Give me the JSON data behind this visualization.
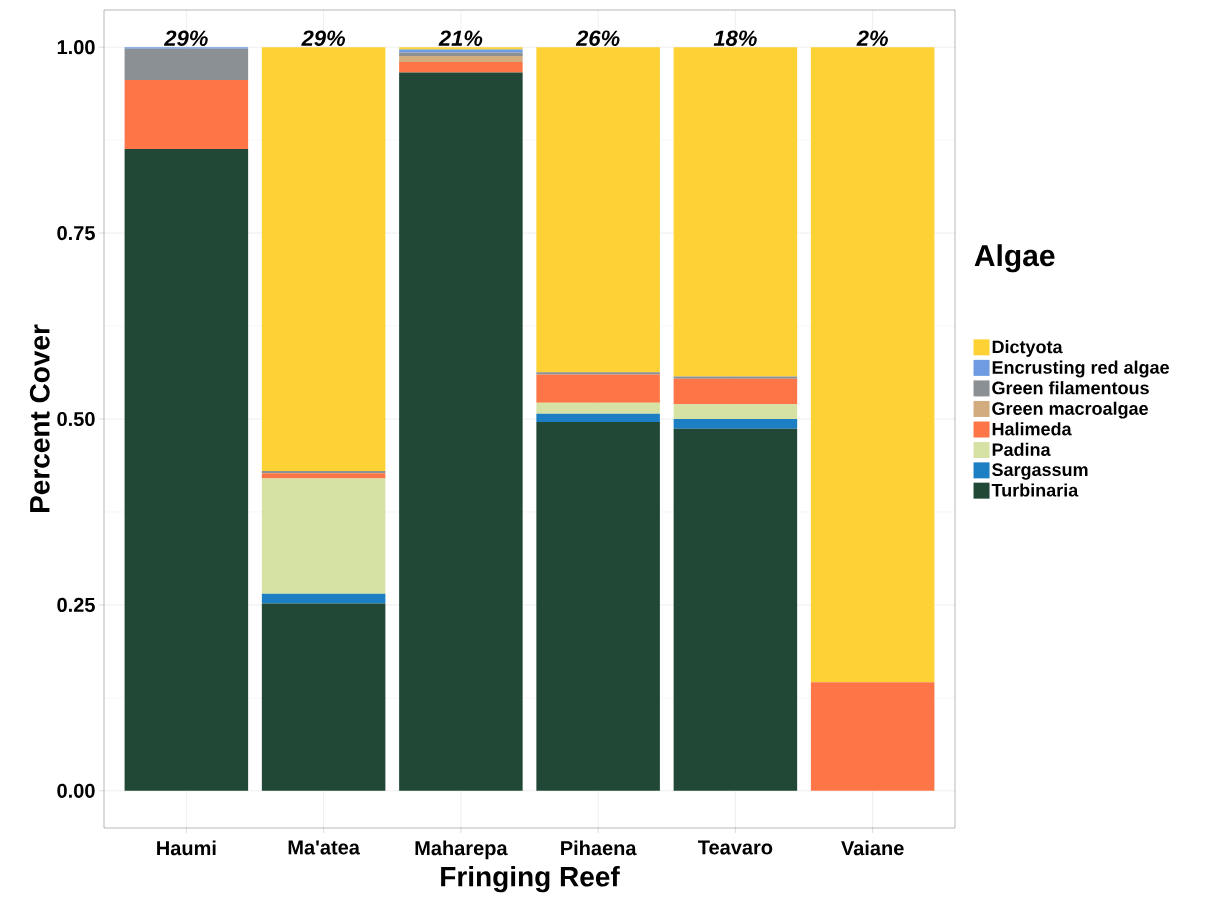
{
  "chart_data": {
    "type": "bar",
    "stacked": true,
    "xlabel": "Fringing Reef",
    "ylabel": "Percent Cover",
    "legend_title": "Algae",
    "legend": "right",
    "grid": true,
    "categories": [
      "Haumi",
      "Ma'atea",
      "Maharepa",
      "Pihaena",
      "Teavaro",
      "Vaiane"
    ],
    "ylim": [
      -0.05,
      1.05
    ],
    "yticks": [
      {
        "value": 0,
        "label": "0.00"
      },
      {
        "value": 0.25,
        "label": "0.25"
      },
      {
        "value": 0.5,
        "label": "0.50"
      },
      {
        "value": 0.75,
        "label": "0.75"
      },
      {
        "value": 1,
        "label": "1.00"
      }
    ],
    "annotations": [
      "29%",
      "29%",
      "21%",
      "26%",
      "18%",
      "2%"
    ],
    "series": [
      {
        "name": "Turbinaria",
        "color": "#214836",
        "values": [
          0.863,
          0.252,
          0.966,
          0.496,
          0.487,
          0
        ]
      },
      {
        "name": "Sargassum",
        "color": "#1c7fc3",
        "values": [
          0,
          0.013,
          0,
          0.011,
          0.013,
          0
        ]
      },
      {
        "name": "Padina",
        "color": "#d5e2a3",
        "values": [
          0,
          0.155,
          0,
          0.015,
          0.02,
          0
        ]
      },
      {
        "name": "Halimeda",
        "color": "#fe7647",
        "values": [
          0.093,
          0.007,
          0.014,
          0.038,
          0.034,
          0.146
        ]
      },
      {
        "name": "Green macroalgae",
        "color": "#d2ac7e",
        "values": [
          0,
          0,
          0.008,
          0,
          0,
          0
        ]
      },
      {
        "name": "Green filamentous",
        "color": "#8b9095",
        "values": [
          0.042,
          0.003,
          0.005,
          0.003,
          0.003,
          0
        ]
      },
      {
        "name": "Encrusting red algae",
        "color": "#6f9be2",
        "values": [
          0.002,
          0,
          0.004,
          0,
          0,
          0
        ]
      },
      {
        "name": "Dictyota",
        "color": "#fed235",
        "values": [
          0,
          0.57,
          0.003,
          0.437,
          0.443,
          0.854
        ]
      }
    ]
  }
}
